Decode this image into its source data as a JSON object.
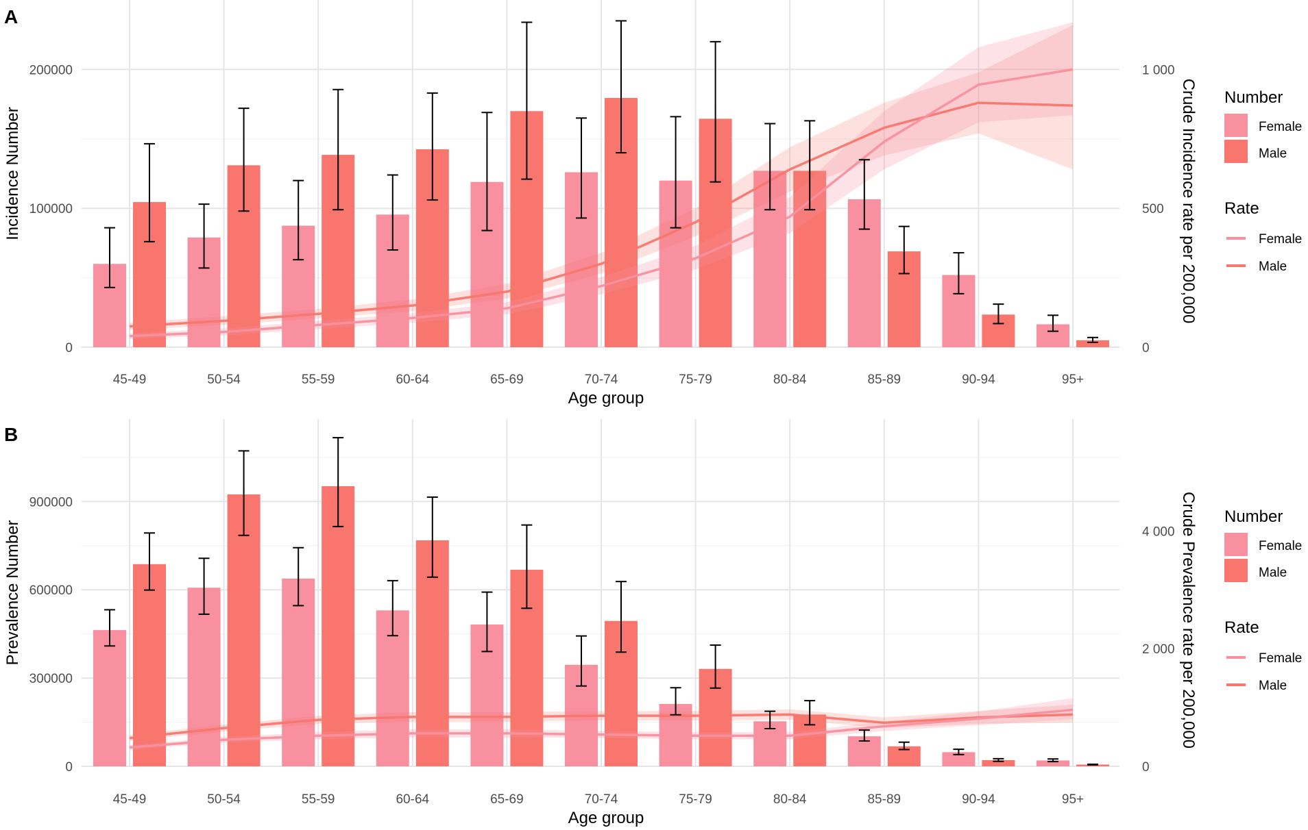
{
  "colors": {
    "female": "#F8909F",
    "male": "#F8766D",
    "errorbar": "#000000"
  },
  "chart_data": [
    {
      "type": "bar",
      "panel": "A",
      "title": "",
      "xlabel": "Age group",
      "ylabel": "Incidence Number",
      "y2label": "Crude Incidence rate per 200,000",
      "categories": [
        "45-49",
        "50-54",
        "55-59",
        "60-64",
        "65-69",
        "70-74",
        "75-79",
        "80-84",
        "85-89",
        "90-94",
        "95+"
      ],
      "ylim": [
        0,
        250000
      ],
      "y_ticks": [
        0,
        100000,
        200000
      ],
      "y_tick_labels": [
        "0",
        "100000",
        "200000"
      ],
      "y2lim": [
        0,
        1250
      ],
      "y2_ticks": [
        0,
        500,
        1000
      ],
      "y2_tick_labels": [
        "0",
        "500",
        "1 000"
      ],
      "series": [
        {
          "name": "Female",
          "kind": "number",
          "values": [
            60000,
            79000,
            87500,
            95500,
            119000,
            126000,
            120000,
            127000,
            106500,
            52000,
            16500
          ],
          "lower": [
            43000,
            57000,
            63000,
            70000,
            84000,
            93000,
            86000,
            99000,
            85000,
            38500,
            11500
          ],
          "upper": [
            86000,
            103000,
            120000,
            124000,
            169000,
            165000,
            166000,
            161000,
            135000,
            68000,
            23000
          ]
        },
        {
          "name": "Male",
          "kind": "number",
          "values": [
            104500,
            131000,
            138500,
            142500,
            170000,
            179500,
            164500,
            127000,
            69000,
            23500,
            5000
          ],
          "lower": [
            76000,
            98000,
            99000,
            106000,
            121000,
            140000,
            119000,
            99000,
            53000,
            17000,
            3500
          ],
          "upper": [
            146500,
            172000,
            185500,
            183000,
            234000,
            235000,
            220000,
            163000,
            87000,
            31000,
            7000
          ]
        },
        {
          "name": "Female",
          "kind": "rate",
          "values": [
            40,
            55,
            80,
            105,
            140,
            220,
            320,
            470,
            740,
            945,
            1000
          ],
          "lower": [
            30,
            42,
            65,
            88,
            118,
            190,
            280,
            410,
            640,
            810,
            835
          ],
          "upper": [
            50,
            68,
            95,
            122,
            162,
            252,
            365,
            540,
            850,
            1080,
            1170
          ]
        },
        {
          "name": "Male",
          "kind": "rate",
          "values": [
            75,
            95,
            120,
            150,
            200,
            300,
            450,
            640,
            790,
            880,
            870
          ],
          "lower": [
            62,
            80,
            104,
            130,
            175,
            265,
            400,
            560,
            690,
            770,
            640
          ],
          "upper": [
            88,
            112,
            138,
            172,
            228,
            340,
            500,
            720,
            880,
            990,
            1160
          ]
        }
      ],
      "legend": {
        "number_title": "Number",
        "rate_title": "Rate",
        "female_label": "Female",
        "male_label": "Male"
      }
    },
    {
      "type": "bar",
      "panel": "B",
      "title": "",
      "xlabel": "Age group",
      "ylabel": "Prevalence Number",
      "y2label": "Crude Prevalence rate per 200,000",
      "categories": [
        "45-49",
        "50-54",
        "55-59",
        "60-64",
        "65-69",
        "70-74",
        "75-79",
        "80-84",
        "85-89",
        "90-94",
        "95+"
      ],
      "ylim": [
        0,
        1180000
      ],
      "y_ticks": [
        0,
        300000,
        600000,
        900000
      ],
      "y_tick_labels": [
        "0",
        "300000",
        "600000",
        "900000"
      ],
      "y2lim": [
        0,
        5900
      ],
      "y2_ticks": [
        0,
        2000,
        4000
      ],
      "y2_tick_labels": [
        "0",
        "2 000",
        "4 000"
      ],
      "series": [
        {
          "name": "Female",
          "kind": "number",
          "values": [
            463000,
            607000,
            638000,
            530000,
            482000,
            345000,
            212000,
            153000,
            102000,
            48000,
            20000
          ],
          "lower": [
            409000,
            517000,
            546000,
            444000,
            390000,
            273000,
            175000,
            128000,
            86000,
            40000,
            16000
          ],
          "upper": [
            532000,
            707000,
            743000,
            631000,
            592000,
            443000,
            267000,
            187000,
            123000,
            58000,
            25000
          ]
        },
        {
          "name": "Male",
          "kind": "number",
          "values": [
            687000,
            924000,
            952000,
            768000,
            668000,
            494000,
            331000,
            176000,
            68000,
            21000,
            6000
          ],
          "lower": [
            599000,
            785000,
            815000,
            643000,
            537000,
            388000,
            266000,
            141000,
            57000,
            17000,
            5000
          ],
          "upper": [
            793000,
            1072000,
            1117000,
            915000,
            820000,
            628000,
            412000,
            223000,
            82000,
            26000,
            7000
          ]
        },
        {
          "name": "Female",
          "kind": "rate",
          "values": [
            320,
            450,
            520,
            560,
            560,
            540,
            520,
            520,
            680,
            810,
            960
          ],
          "lower": [
            280,
            400,
            460,
            490,
            490,
            480,
            460,
            460,
            600,
            700,
            800
          ],
          "upper": [
            360,
            500,
            580,
            630,
            630,
            600,
            580,
            580,
            760,
            930,
            1160
          ]
        },
        {
          "name": "Male",
          "kind": "rate",
          "values": [
            480,
            650,
            790,
            840,
            840,
            860,
            860,
            880,
            740,
            830,
            880
          ],
          "lower": [
            430,
            590,
            720,
            760,
            760,
            780,
            780,
            790,
            650,
            720,
            740
          ],
          "upper": [
            530,
            710,
            860,
            920,
            920,
            940,
            940,
            970,
            830,
            940,
            1050
          ]
        }
      ],
      "legend": {
        "number_title": "Number",
        "rate_title": "Rate",
        "female_label": "Female",
        "male_label": "Male"
      }
    }
  ]
}
